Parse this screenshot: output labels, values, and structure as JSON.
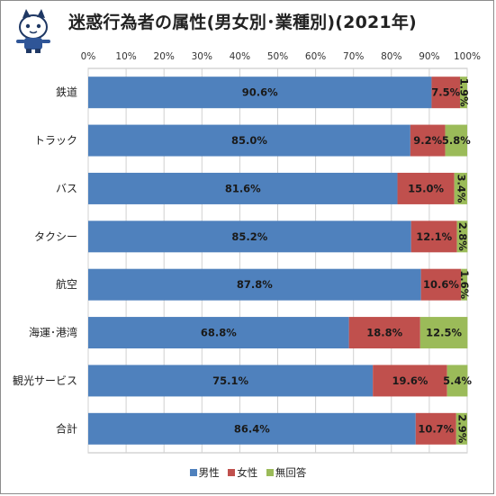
{
  "title": "迷惑行為者の属性(男女別･業種別)(2021年)",
  "colors": {
    "male": "#4f81bd",
    "female": "#c0504d",
    "none": "#9bbb59"
  },
  "chart_data": {
    "type": "bar",
    "orientation": "horizontal",
    "stacked": true,
    "title": "迷惑行為者の属性(男女別･業種別)(2021年)",
    "xlabel": "",
    "ylabel": "",
    "xlim": [
      0,
      100
    ],
    "x_ticks": [
      "0%",
      "10%",
      "20%",
      "30%",
      "40%",
      "50%",
      "60%",
      "70%",
      "80%",
      "90%",
      "100%"
    ],
    "categories": [
      "鉄道",
      "トラック",
      "バス",
      "タクシー",
      "航空",
      "海運･港湾",
      "観光サービス",
      "合計"
    ],
    "series": [
      {
        "name": "男性",
        "values": [
          90.6,
          85.0,
          81.6,
          85.2,
          87.8,
          68.8,
          75.1,
          86.4
        ]
      },
      {
        "name": "女性",
        "values": [
          7.5,
          9.2,
          15.0,
          12.1,
          10.6,
          18.8,
          19.6,
          10.7
        ]
      },
      {
        "name": "無回答",
        "values": [
          1.9,
          5.8,
          3.4,
          2.8,
          1.6,
          12.5,
          5.4,
          2.9
        ]
      }
    ],
    "legend_position": "bottom",
    "grid": true
  }
}
